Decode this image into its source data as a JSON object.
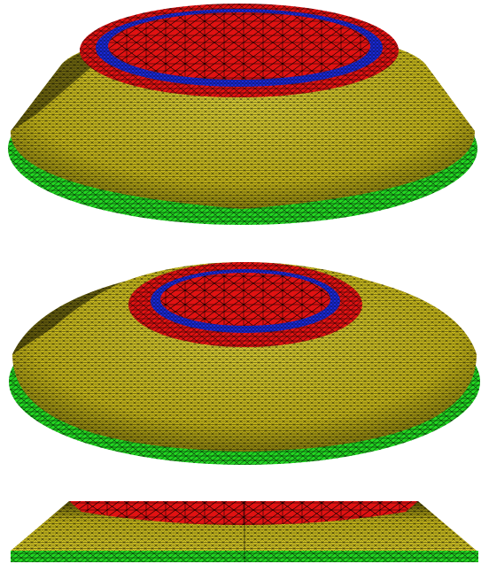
{
  "colors": {
    "background": "#ffffff",
    "yellow": "#d8c81a",
    "yellow_light": "#e8dc3a",
    "yellow_dark": "#8c8210",
    "red": "#e01212",
    "red_dark": "#9a0606",
    "blue": "#1a2ad8",
    "blue_dark": "#0a1470",
    "green": "#22d622",
    "green_dark": "#0e7a0e",
    "mesh_line": "#000000"
  },
  "views": [
    {
      "label": "",
      "kind": "oblique-view-high"
    },
    {
      "label": "",
      "kind": "oblique-view-low"
    },
    {
      "label": "",
      "kind": "side-view"
    }
  ]
}
